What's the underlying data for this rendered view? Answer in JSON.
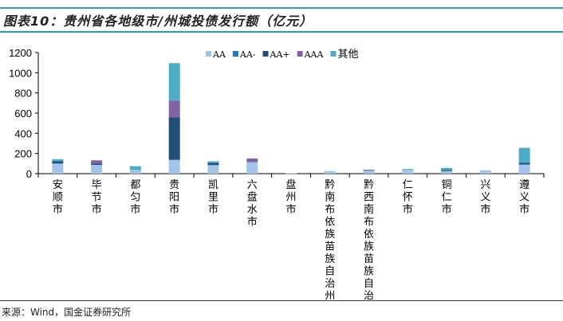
{
  "title": "图表10：贵州省各地级市/州城投债发行额（亿元）",
  "source": "来源：Wind，国金证券研究所",
  "colors": {
    "AA": "#a3c4e8",
    "AA-": "#2e75b6",
    "AA+": "#1f4e79",
    "AAA": "#8064a2",
    "其他": "#4bacc6",
    "rule": "#2f9bc1"
  },
  "chart_data": {
    "type": "bar",
    "stacked": true,
    "title": "贵州省各地级市/州城投债发行额（亿元）",
    "xlabel": "",
    "ylabel": "",
    "ylim": [
      0,
      1200
    ],
    "yticks": [
      0,
      200,
      400,
      600,
      800,
      1000,
      1200
    ],
    "grid": false,
    "legend": "top-right",
    "categories": [
      "安顺市",
      "毕节市",
      "都匀市",
      "贵阳市",
      "凯里市",
      "六盘水市",
      "盘州市",
      "黔南布依族苗族自治州",
      "黔西南布依族苗族自治州",
      "仁怀市",
      "铜仁市",
      "兴义市",
      "遵义市"
    ],
    "series": [
      {
        "name": "AA",
        "values": [
          100,
          87,
          37,
          137,
          85,
          113,
          5,
          26,
          32,
          42,
          26,
          34,
          90
        ]
      },
      {
        "name": "AA-",
        "values": [
          0,
          0,
          0,
          0,
          0,
          0,
          0,
          0,
          0,
          0,
          0,
          0,
          0
        ]
      },
      {
        "name": "AA+",
        "values": [
          24,
          13,
          0,
          420,
          21,
          0,
          0,
          0,
          5,
          0,
          10,
          0,
          18
        ]
      },
      {
        "name": "AAA",
        "values": [
          0,
          32,
          0,
          166,
          0,
          37,
          0,
          0,
          0,
          0,
          0,
          0,
          0
        ]
      },
      {
        "name": "其他",
        "values": [
          20,
          0,
          37,
          372,
          16,
          0,
          0,
          0,
          0,
          6,
          21,
          0,
          148
        ]
      }
    ]
  }
}
